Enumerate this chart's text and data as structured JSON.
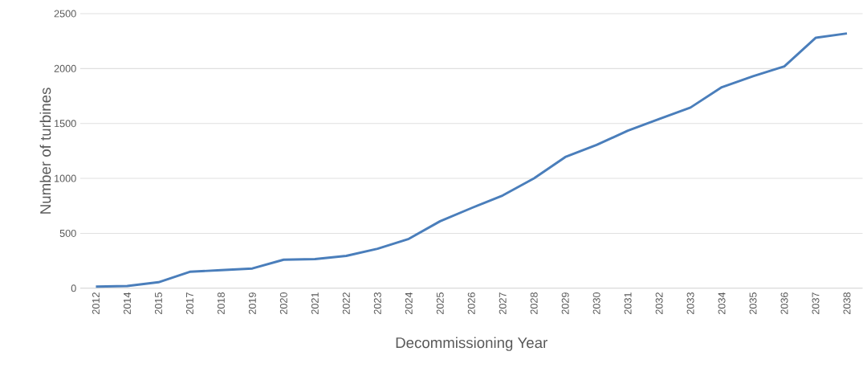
{
  "chart_data": {
    "type": "line",
    "xlabel": "Decommissioning Year",
    "ylabel": "Number of turbines",
    "categories": [
      "2012",
      "2014",
      "2015",
      "2017",
      "2018",
      "2019",
      "2020",
      "2021",
      "2022",
      "2023",
      "2024",
      "2025",
      "2026",
      "2027",
      "2028",
      "2029",
      "2030",
      "2031",
      "2032",
      "2033",
      "2034",
      "2035",
      "2036",
      "2037",
      "2038"
    ],
    "series": [
      {
        "color": "#4a7ebb",
        "values": [
          15,
          20,
          55,
          150,
          165,
          180,
          260,
          265,
          295,
          360,
          450,
          610,
          730,
          845,
          1000,
          1195,
          1305,
          1435,
          1540,
          1645,
          1830,
          1930,
          2020,
          2280,
          2320
        ]
      }
    ],
    "ylim": [
      0,
      2500
    ],
    "yticks": [
      0,
      500,
      1000,
      1500,
      2000,
      2500
    ],
    "grid": "y",
    "legend": false,
    "marker": "none",
    "line_style": "solid"
  }
}
